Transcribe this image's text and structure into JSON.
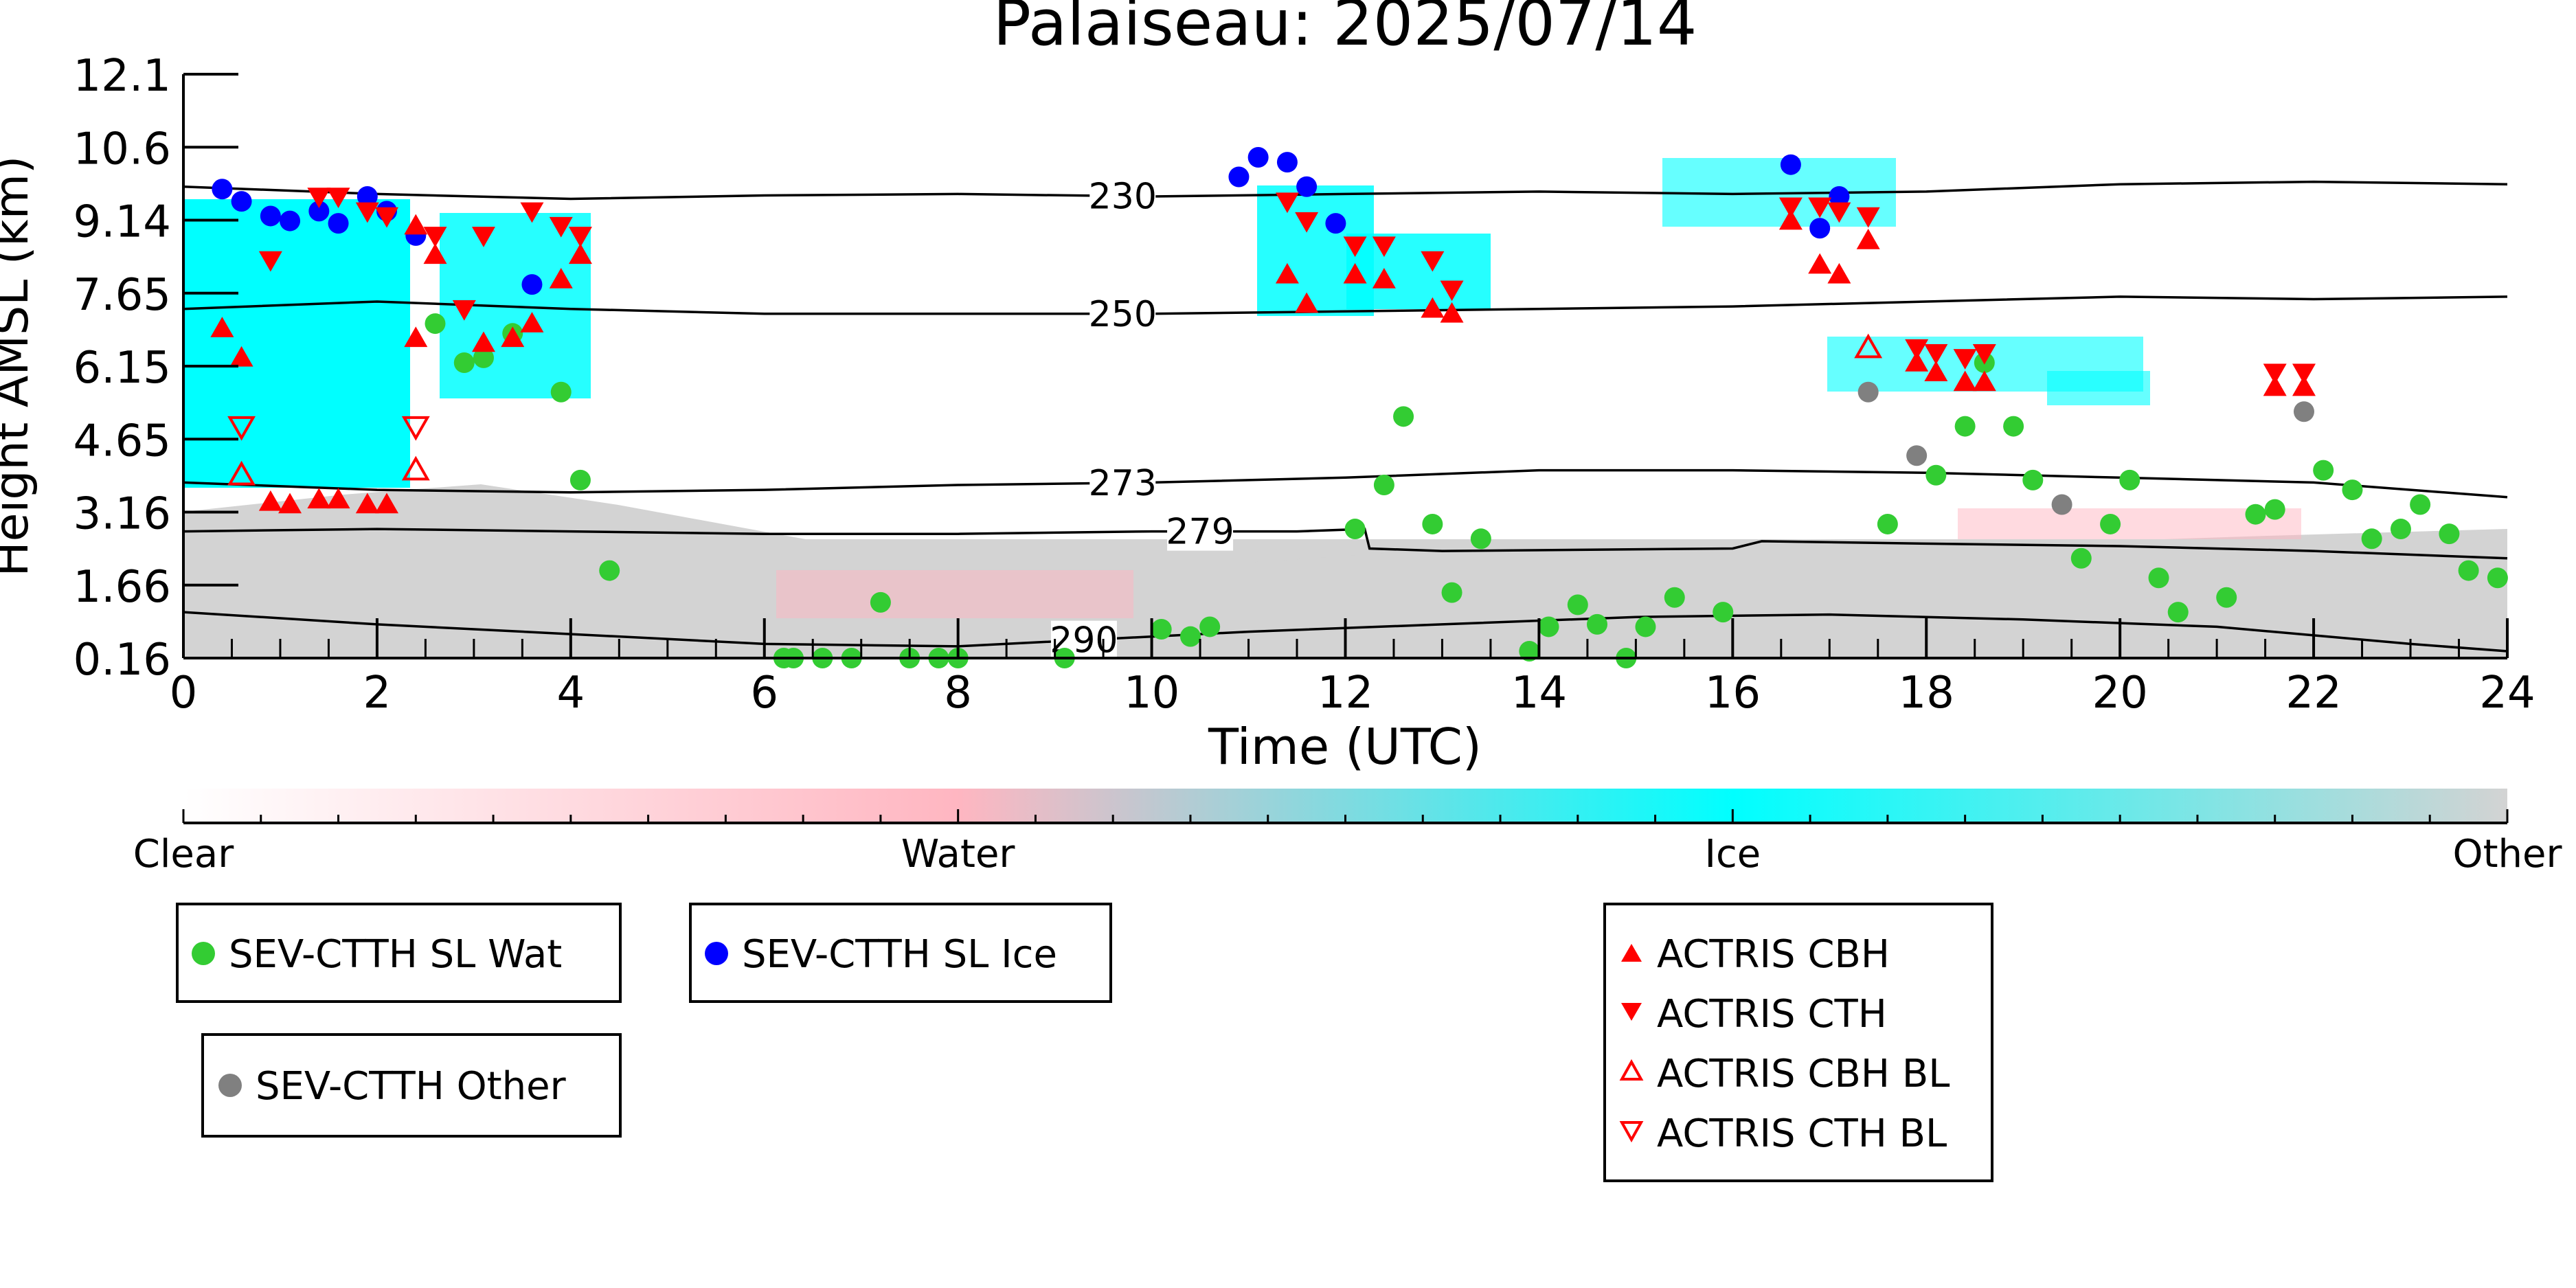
{
  "chart_data": {
    "type": "scatter",
    "title": "Palaiseau: 2025/07/14",
    "xlabel": "Time (UTC)",
    "ylabel": "Height AMSL (km)",
    "xlim": [
      0,
      24
    ],
    "ylim": [
      0.16,
      12.1
    ],
    "grid": false,
    "x_ticks": [
      "0",
      "2",
      "4",
      "6",
      "8",
      "10",
      "12",
      "14",
      "16",
      "18",
      "20",
      "22",
      "24"
    ],
    "y_ticks": [
      "0.16",
      "1.66",
      "3.16",
      "4.65",
      "6.15",
      "7.65",
      "9.14",
      "10.6",
      "12.1"
    ],
    "colorbar": {
      "labels": [
        "Clear",
        "Water",
        "Ice",
        "Other"
      ],
      "colors": [
        "#ffffff",
        "#ffb6c1",
        "#00ffff",
        "#d3d3d3"
      ]
    },
    "isotherms": [
      {
        "label": "230",
        "label_x": 9.7,
        "points": [
          [
            0,
            9.8
          ],
          [
            2,
            9.65
          ],
          [
            4,
            9.55
          ],
          [
            6,
            9.62
          ],
          [
            8,
            9.65
          ],
          [
            10,
            9.6
          ],
          [
            12,
            9.65
          ],
          [
            14,
            9.7
          ],
          [
            16,
            9.65
          ],
          [
            18,
            9.7
          ],
          [
            20,
            9.85
          ],
          [
            22,
            9.9
          ],
          [
            24,
            9.85
          ]
        ]
      },
      {
        "label": "250",
        "label_x": 9.7,
        "points": [
          [
            0,
            7.3
          ],
          [
            2,
            7.45
          ],
          [
            4,
            7.3
          ],
          [
            6,
            7.2
          ],
          [
            8,
            7.2
          ],
          [
            10,
            7.2
          ],
          [
            12,
            7.25
          ],
          [
            14,
            7.3
          ],
          [
            16,
            7.35
          ],
          [
            18,
            7.45
          ],
          [
            20,
            7.55
          ],
          [
            22,
            7.5
          ],
          [
            24,
            7.55
          ]
        ]
      },
      {
        "label": "273",
        "label_x": 9.7,
        "points": [
          [
            0,
            3.75
          ],
          [
            2,
            3.6
          ],
          [
            4,
            3.55
          ],
          [
            6,
            3.6
          ],
          [
            8,
            3.7
          ],
          [
            10,
            3.75
          ],
          [
            12,
            3.85
          ],
          [
            14,
            4.0
          ],
          [
            16,
            4.0
          ],
          [
            18,
            3.95
          ],
          [
            20,
            3.85
          ],
          [
            22,
            3.75
          ],
          [
            24,
            3.45
          ]
        ]
      },
      {
        "label": "279",
        "label_x": 10.5,
        "points": [
          [
            0,
            2.75
          ],
          [
            2,
            2.8
          ],
          [
            4,
            2.75
          ],
          [
            6,
            2.7
          ],
          [
            8,
            2.7
          ],
          [
            10,
            2.75
          ],
          [
            11.5,
            2.75
          ],
          [
            12.2,
            2.8
          ],
          [
            12.25,
            2.4
          ],
          [
            13,
            2.35
          ],
          [
            16,
            2.4
          ],
          [
            16.3,
            2.55
          ],
          [
            18,
            2.5
          ],
          [
            20,
            2.45
          ],
          [
            22,
            2.35
          ],
          [
            24,
            2.2
          ]
        ]
      },
      {
        "label": "290",
        "label_x": 9.3,
        "points": [
          [
            0,
            1.1
          ],
          [
            2,
            0.85
          ],
          [
            4,
            0.65
          ],
          [
            6,
            0.45
          ],
          [
            8,
            0.4
          ],
          [
            9.5,
            0.55
          ],
          [
            11,
            0.7
          ],
          [
            13,
            0.85
          ],
          [
            15,
            1.0
          ],
          [
            17,
            1.05
          ],
          [
            19,
            0.95
          ],
          [
            21,
            0.8
          ],
          [
            23,
            0.45
          ],
          [
            24,
            0.3
          ]
        ]
      }
    ],
    "series": [
      {
        "name": "SEV-CTTH SL Wat",
        "marker": "circle",
        "color": "#33cc33",
        "x": [
          2.6,
          2.9,
          3.1,
          3.4,
          3.9,
          4.1,
          4.4,
          6.2,
          6.3,
          6.6,
          6.9,
          7.2,
          7.5,
          7.8,
          8.0,
          9.1,
          10.1,
          10.4,
          10.6,
          12.1,
          12.4,
          12.6,
          12.9,
          13.1,
          13.4,
          13.9,
          14.1,
          14.4,
          14.6,
          14.9,
          15.1,
          15.4,
          15.9,
          17.6,
          18.1,
          18.4,
          18.6,
          18.9,
          19.1,
          19.6,
          19.9,
          20.1,
          20.4,
          20.6,
          21.1,
          21.4,
          21.6,
          22.1,
          22.4,
          22.6,
          22.9,
          23.1,
          23.4,
          23.6,
          23.9
        ],
        "y": [
          7.0,
          6.2,
          6.3,
          6.8,
          5.6,
          3.8,
          1.95,
          0.16,
          0.16,
          0.16,
          0.16,
          1.3,
          0.16,
          0.16,
          0.16,
          0.16,
          0.75,
          0.6,
          0.8,
          2.8,
          3.7,
          5.1,
          2.9,
          1.5,
          2.6,
          0.3,
          0.8,
          1.25,
          0.85,
          0.16,
          0.8,
          1.4,
          1.1,
          2.9,
          3.9,
          4.9,
          6.2,
          4.9,
          3.8,
          2.2,
          2.9,
          3.8,
          1.8,
          1.1,
          1.4,
          3.1,
          3.2,
          4.0,
          3.6,
          2.6,
          2.8,
          3.3,
          2.7,
          1.95,
          1.8
        ]
      },
      {
        "name": "SEV-CTTH SL Ice",
        "marker": "circle",
        "color": "#0000ff",
        "x": [
          0.4,
          0.6,
          0.9,
          1.1,
          1.4,
          1.6,
          1.9,
          2.1,
          2.4,
          3.6,
          10.9,
          11.1,
          11.4,
          11.6,
          11.9,
          16.6,
          16.9,
          17.1
        ],
        "y": [
          9.75,
          9.5,
          9.2,
          9.1,
          9.3,
          9.05,
          9.6,
          9.3,
          8.8,
          7.8,
          10.0,
          10.4,
          10.3,
          9.8,
          9.05,
          10.25,
          8.95,
          9.6
        ]
      },
      {
        "name": "SEV-CTTH Other",
        "marker": "circle",
        "color": "#808080",
        "x": [
          17.4,
          17.9,
          19.4,
          21.9
        ],
        "y": [
          5.6,
          4.3,
          3.3,
          5.2
        ]
      },
      {
        "name": "ACTRIS CBH",
        "marker": "triangle-up",
        "color": "#ff0000",
        "x": [
          0.4,
          0.6,
          0.9,
          1.1,
          1.4,
          1.6,
          1.9,
          2.1,
          2.4,
          2.4,
          2.6,
          3.1,
          3.4,
          3.6,
          3.9,
          4.1,
          11.4,
          11.6,
          12.1,
          12.4,
          12.9,
          13.1,
          16.6,
          16.9,
          17.1,
          17.4,
          17.9,
          18.1,
          18.4,
          18.6,
          21.6,
          21.9
        ],
        "y": [
          6.9,
          6.3,
          3.35,
          3.3,
          3.4,
          3.4,
          3.3,
          3.3,
          6.7,
          9.0,
          8.4,
          6.6,
          6.7,
          7.0,
          7.9,
          8.4,
          8.0,
          7.4,
          8.0,
          7.9,
          7.3,
          7.2,
          9.1,
          8.2,
          8.0,
          8.7,
          6.2,
          6.0,
          5.8,
          5.8,
          5.7,
          5.7
        ]
      },
      {
        "name": "ACTRIS CTH",
        "marker": "triangle-down",
        "color": "#ff0000",
        "x": [
          0.9,
          1.4,
          1.6,
          1.9,
          2.1,
          2.6,
          2.9,
          3.1,
          3.6,
          3.9,
          4.1,
          11.4,
          11.6,
          12.1,
          12.4,
          12.9,
          13.1,
          16.6,
          16.9,
          17.1,
          17.4,
          17.9,
          18.1,
          18.4,
          18.6,
          21.6,
          21.9
        ],
        "y": [
          8.3,
          9.6,
          9.6,
          9.3,
          9.2,
          8.8,
          7.3,
          8.8,
          9.3,
          9.0,
          8.8,
          9.5,
          9.1,
          8.6,
          8.6,
          8.3,
          7.7,
          9.4,
          9.4,
          9.3,
          9.2,
          6.5,
          6.4,
          6.3,
          6.4,
          6.0,
          6.0
        ]
      },
      {
        "name": "ACTRIS CBH BL",
        "marker": "triangle-up-open",
        "color": "#ff0000",
        "x": [
          0.6,
          2.4,
          17.4
        ],
        "y": [
          3.9,
          4.0,
          6.5
        ]
      },
      {
        "name": "ACTRIS CTH BL",
        "marker": "triangle-down-open",
        "color": "#ff0000",
        "x": [
          0.6,
          2.4
        ],
        "y": [
          4.9,
          4.9
        ]
      }
    ]
  }
}
